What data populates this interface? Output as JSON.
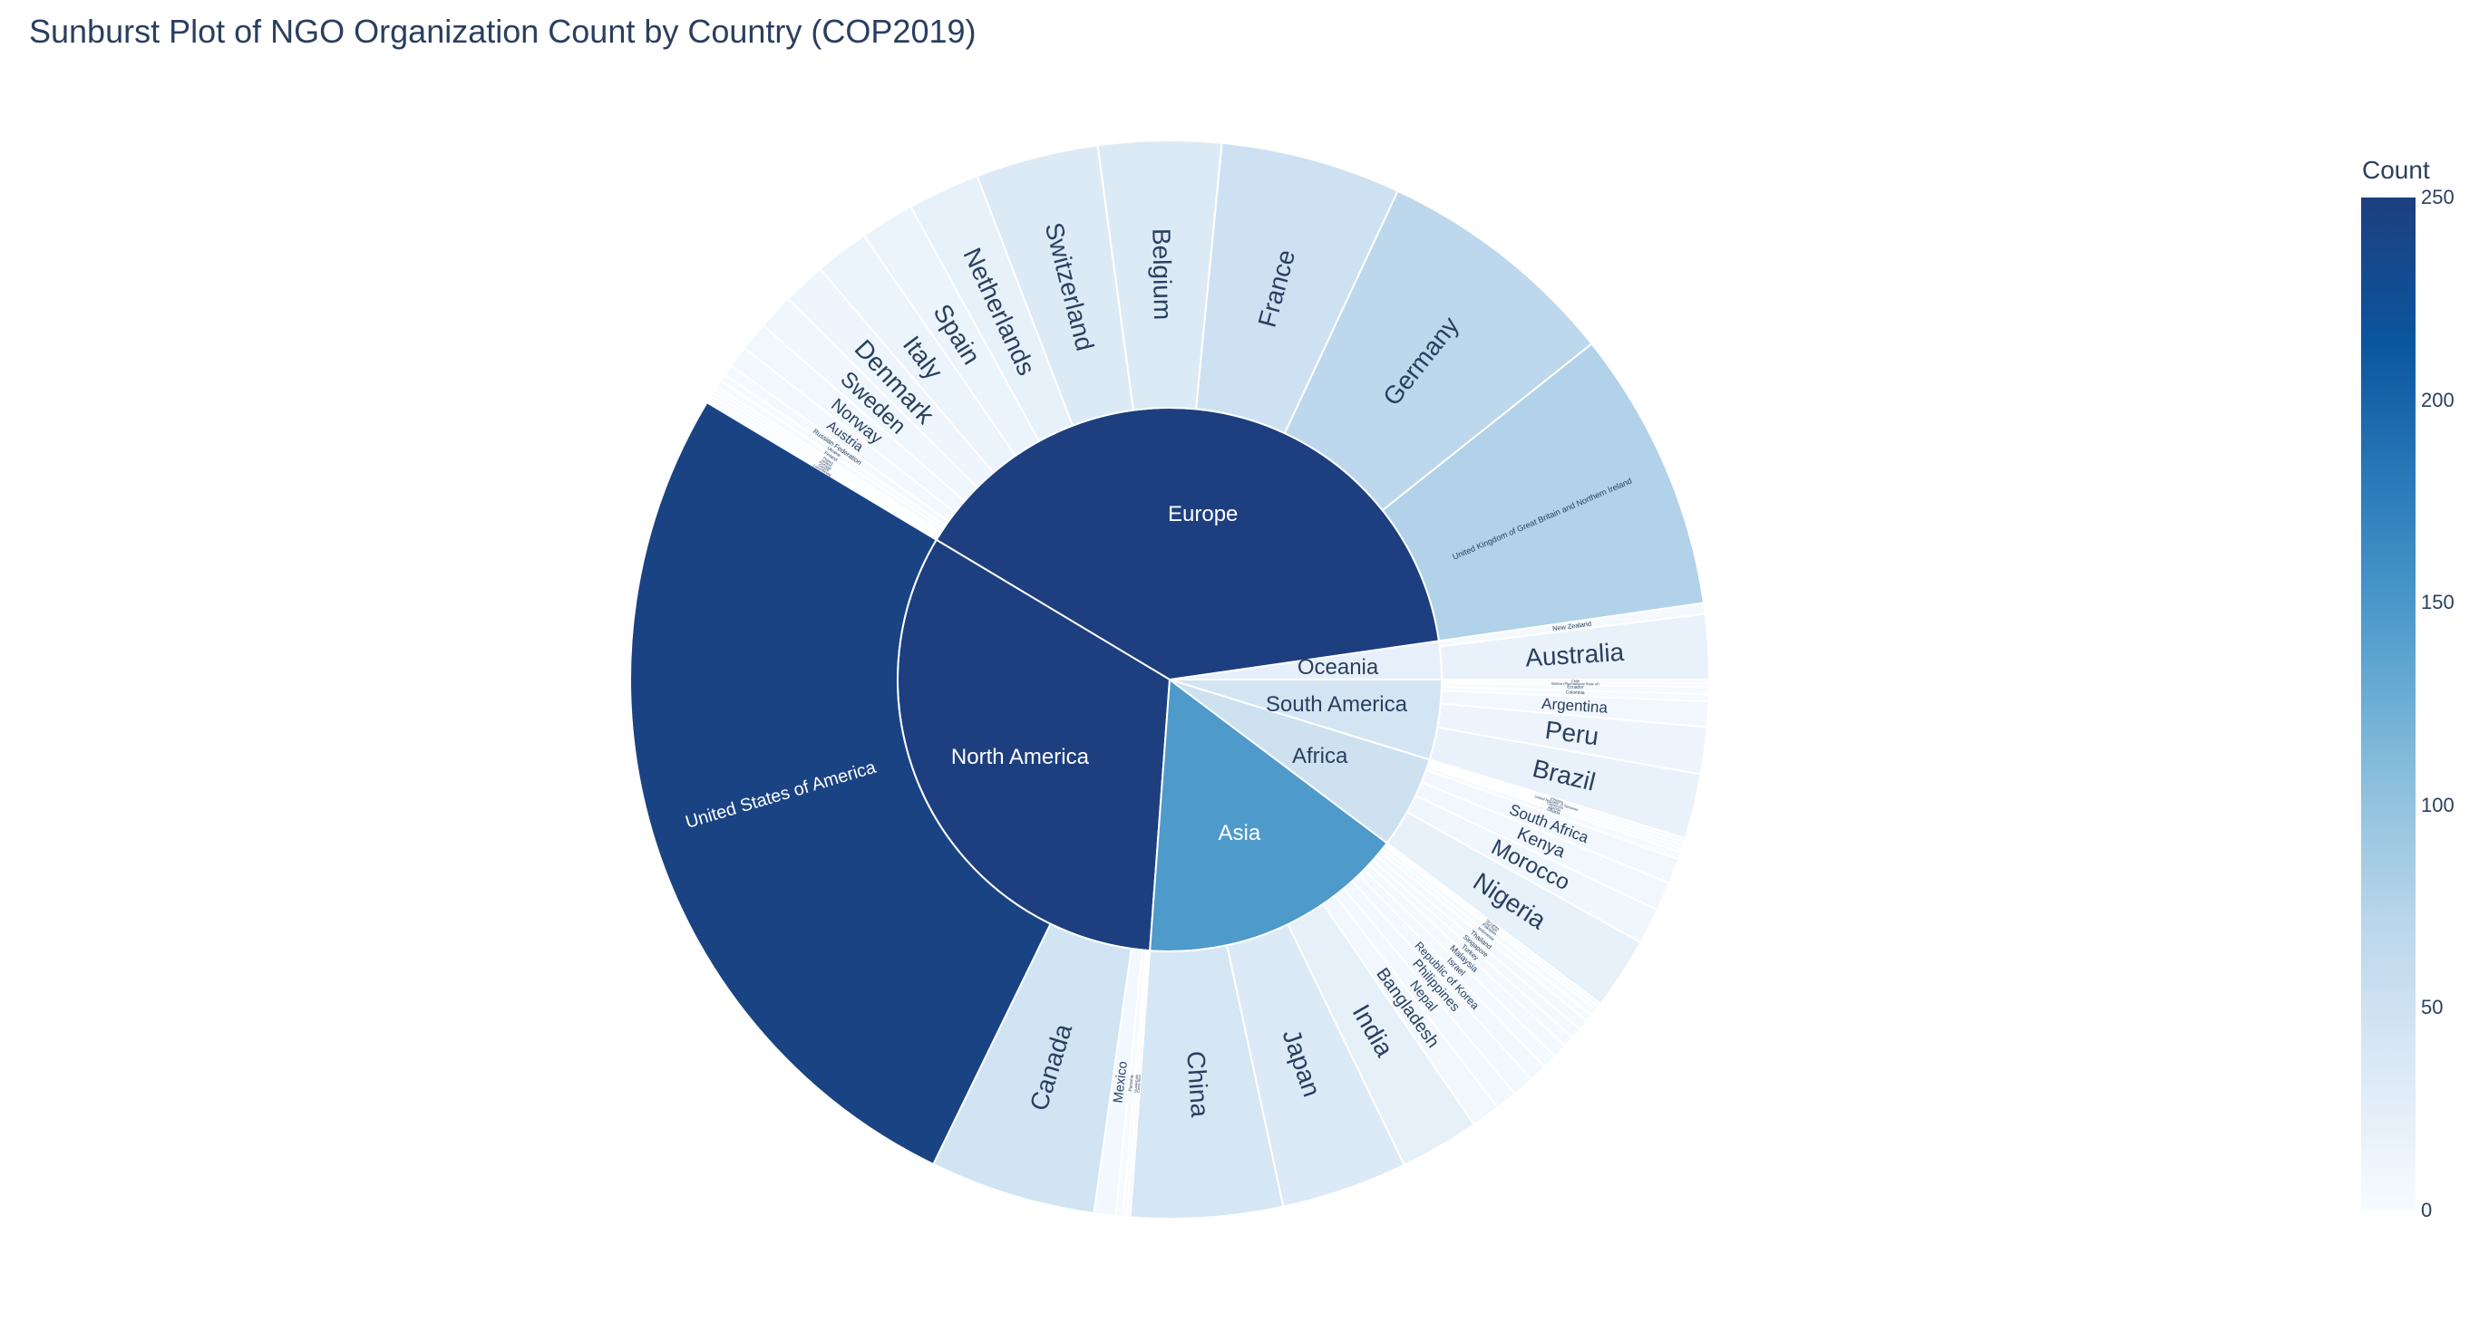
{
  "chart_data": {
    "type": "sunburst",
    "title": "Sunburst Plot of NGO Organization Count by Country (COP2019)",
    "colorbar": {
      "title": "Count",
      "min": 0,
      "max": 250,
      "ticks": [
        "0",
        "50",
        "100",
        "150",
        "200",
        "250"
      ]
    },
    "colorscale": [
      "#f7fbff",
      "#dbe9f6",
      "#bad6eb",
      "#89bedc",
      "#539ecd",
      "#2b7bba",
      "#0b559f",
      "#1d3f7f"
    ],
    "start_angle_deg": 0,
    "direction": "counterclockwise",
    "regions": [
      {
        "name": "Oceania",
        "countries": [
          {
            "name": "Australia",
            "value": 18
          },
          {
            "name": "New Zealand",
            "value": 3
          }
        ]
      },
      {
        "name": "Europe",
        "countries": [
          {
            "name": "United Kingdom of Great Britain and Northern Ireland",
            "value": 78
          },
          {
            "name": "Germany",
            "value": 68
          },
          {
            "name": "France",
            "value": 50
          },
          {
            "name": "Belgium",
            "value": 34
          },
          {
            "name": "Switzerland",
            "value": 34
          },
          {
            "name": "Netherlands",
            "value": 20
          },
          {
            "name": "Spain",
            "value": 15
          },
          {
            "name": "Italy",
            "value": 15
          },
          {
            "name": "Denmark",
            "value": 12
          },
          {
            "name": "Sweden",
            "value": 10
          },
          {
            "name": "Norway",
            "value": 8
          },
          {
            "name": "Austria",
            "value": 6
          },
          {
            "name": "Russian Federation",
            "value": 3
          },
          {
            "name": "Ukraine",
            "value": 2
          },
          {
            "name": "Finland",
            "value": 2
          },
          {
            "name": "Poland",
            "value": 1
          },
          {
            "name": "Ireland",
            "value": 1
          },
          {
            "name": "Portugal",
            "value": 1
          },
          {
            "name": "Greece",
            "value": 1
          },
          {
            "name": "Luxembourg",
            "value": 1
          }
        ]
      },
      {
        "name": "North America",
        "countries": [
          {
            "name": "United States of America",
            "value": 244
          },
          {
            "name": "Canada",
            "value": 46
          },
          {
            "name": "Mexico",
            "value": 6
          },
          {
            "name": "Panama",
            "value": 2
          },
          {
            "name": "Guatemala",
            "value": 1
          },
          {
            "name": "Costa Rica",
            "value": 1
          }
        ]
      },
      {
        "name": "Asia",
        "countries": [
          {
            "name": "China",
            "value": 42
          },
          {
            "name": "Japan",
            "value": 35
          },
          {
            "name": "India",
            "value": 22
          },
          {
            "name": "Bangladesh",
            "value": 8
          },
          {
            "name": "Nepal",
            "value": 6
          },
          {
            "name": "Philippines",
            "value": 6
          },
          {
            "name": "Republic of Korea",
            "value": 5
          },
          {
            "name": "Israel",
            "value": 4
          },
          {
            "name": "Malaysia",
            "value": 4
          },
          {
            "name": "Turkey",
            "value": 3
          },
          {
            "name": "Singapore",
            "value": 3
          },
          {
            "name": "Thailand",
            "value": 3
          },
          {
            "name": "Indonesia",
            "value": 2
          },
          {
            "name": "Pakistan",
            "value": 2
          },
          {
            "name": "Viet Nam",
            "value": 1
          },
          {
            "name": "Sri Lanka",
            "value": 1
          }
        ]
      },
      {
        "name": "Africa",
        "countries": [
          {
            "name": "Nigeria",
            "value": 20
          },
          {
            "name": "Morocco",
            "value": 10
          },
          {
            "name": "Kenya",
            "value": 8
          },
          {
            "name": "South Africa",
            "value": 7
          },
          {
            "name": "Ghana",
            "value": 2
          },
          {
            "name": "Uganda",
            "value": 1
          },
          {
            "name": "Cameroon",
            "value": 1
          },
          {
            "name": "United Republic of Tanzania",
            "value": 1
          },
          {
            "name": "Ethiopia",
            "value": 1
          }
        ]
      },
      {
        "name": "South America",
        "countries": [
          {
            "name": "Brazil",
            "value": 18
          },
          {
            "name": "Peru",
            "value": 13
          },
          {
            "name": "Argentina",
            "value": 7
          },
          {
            "name": "Colombia",
            "value": 2
          },
          {
            "name": "Ecuador",
            "value": 2
          },
          {
            "name": "Bolivia (Plurinational State of)",
            "value": 1
          },
          {
            "name": "Chile",
            "value": 1
          }
        ]
      }
    ]
  }
}
